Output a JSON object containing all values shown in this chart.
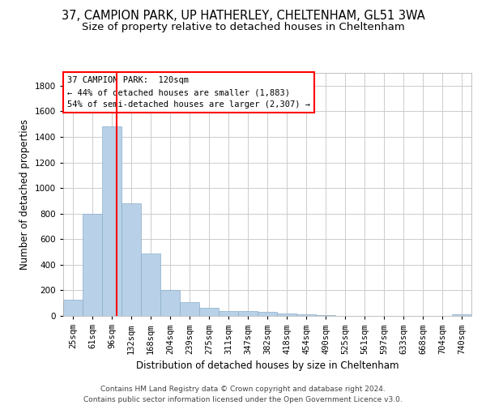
{
  "title1": "37, CAMPION PARK, UP HATHERLEY, CHELTENHAM, GL51 3WA",
  "title2": "Size of property relative to detached houses in Cheltenham",
  "xlabel": "Distribution of detached houses by size in Cheltenham",
  "ylabel": "Number of detached properties",
  "categories": [
    "25sqm",
    "61sqm",
    "96sqm",
    "132sqm",
    "168sqm",
    "204sqm",
    "239sqm",
    "275sqm",
    "311sqm",
    "347sqm",
    "382sqm",
    "418sqm",
    "454sqm",
    "490sqm",
    "525sqm",
    "561sqm",
    "597sqm",
    "633sqm",
    "668sqm",
    "704sqm",
    "740sqm"
  ],
  "values": [
    125,
    800,
    1480,
    880,
    490,
    205,
    105,
    65,
    40,
    35,
    30,
    20,
    15,
    8,
    3,
    2,
    1,
    1,
    1,
    1,
    10
  ],
  "bar_color": "#b8d0e8",
  "bar_edgecolor": "#8aaec8",
  "background_color": "#ffffff",
  "grid_color": "#cccccc",
  "vline_color": "red",
  "vline_pos": 2.25,
  "annotation_text": "37 CAMPION PARK:  120sqm\n← 44% of detached houses are smaller (1,883)\n54% of semi-detached houses are larger (2,307) →",
  "ylim": [
    0,
    1900
  ],
  "yticks": [
    0,
    200,
    400,
    600,
    800,
    1000,
    1200,
    1400,
    1600,
    1800
  ],
  "footer": "Contains HM Land Registry data © Crown copyright and database right 2024.\nContains public sector information licensed under the Open Government Licence v3.0.",
  "title1_fontsize": 10.5,
  "title2_fontsize": 9.5,
  "xlabel_fontsize": 8.5,
  "ylabel_fontsize": 8.5,
  "tick_fontsize": 7.5,
  "annotation_fontsize": 7.5,
  "footer_fontsize": 6.5
}
